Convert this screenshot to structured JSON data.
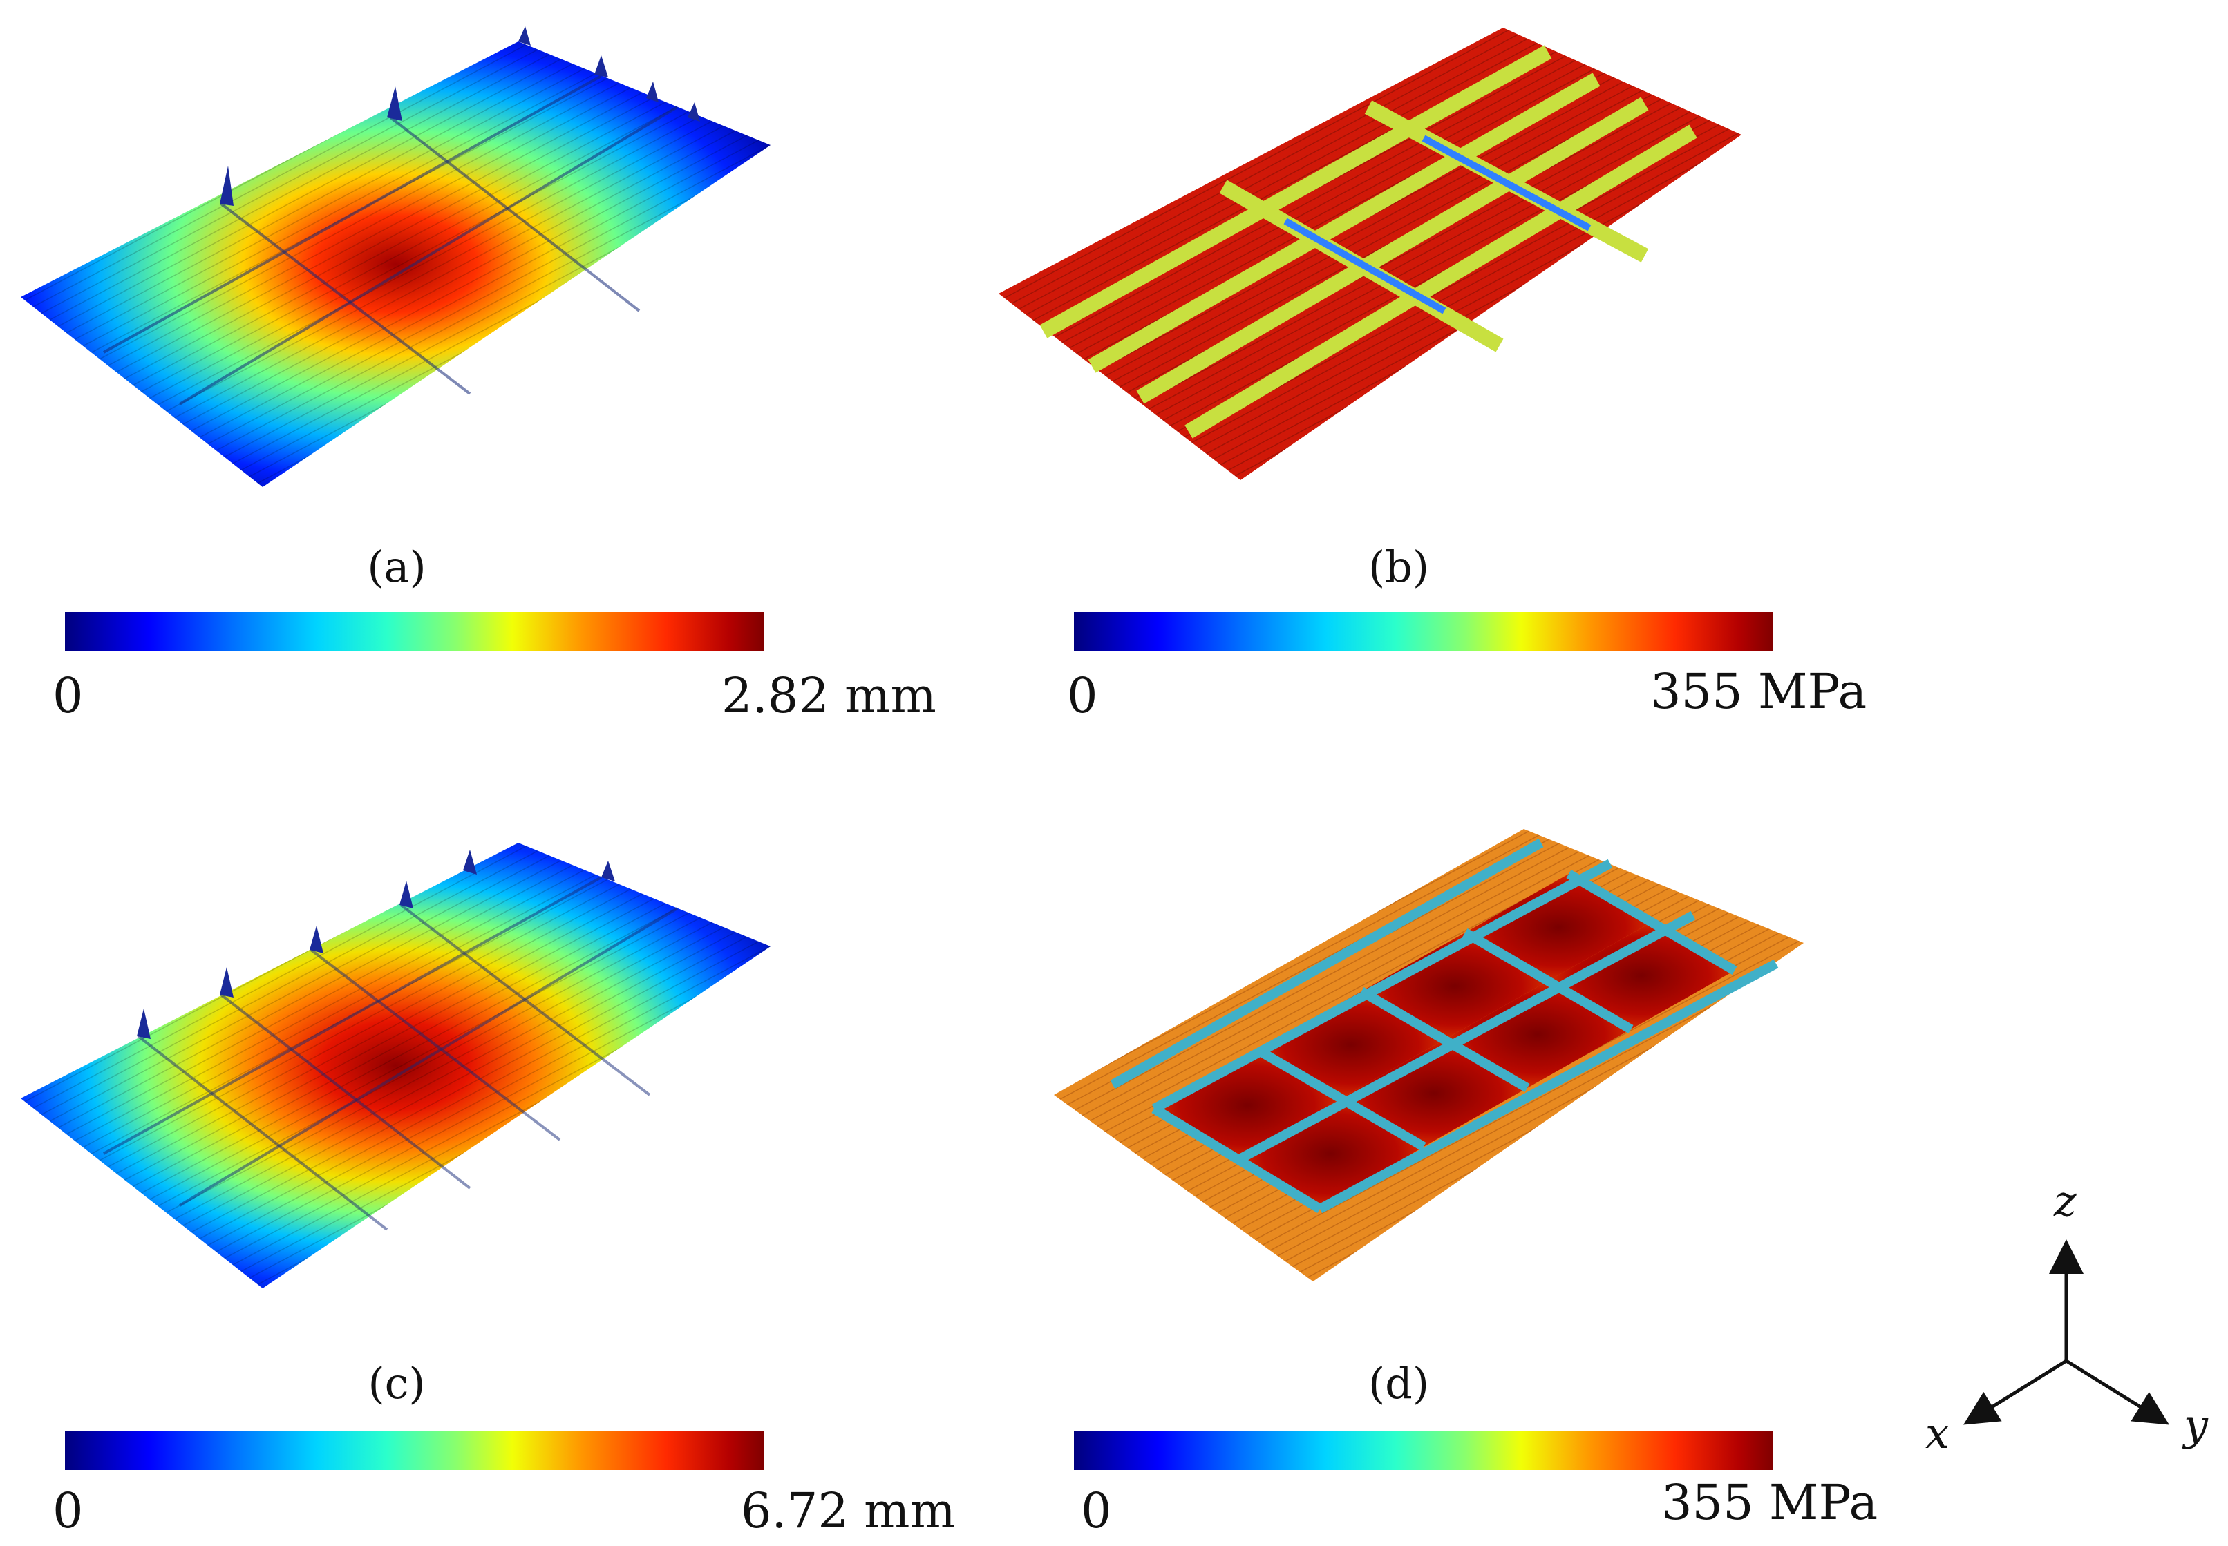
{
  "panels": [
    {
      "id": "a",
      "caption": "(a)",
      "scale_min": "0",
      "scale_max": "2.82 mm",
      "quantity": "displacement",
      "max_value": 2.82,
      "unit": "mm"
    },
    {
      "id": "b",
      "caption": "(b)",
      "scale_min": "0",
      "scale_max": "355 MPa",
      "quantity": "stress",
      "max_value": 355,
      "unit": "MPa"
    },
    {
      "id": "c",
      "caption": "(c)",
      "scale_min": "0",
      "scale_max": "6.72 mm",
      "quantity": "displacement",
      "max_value": 6.72,
      "unit": "mm"
    },
    {
      "id": "d",
      "caption": "(d)",
      "scale_min": "0",
      "scale_max": "355 MPa",
      "quantity": "stress",
      "max_value": 355,
      "unit": "MPa"
    }
  ],
  "axes": {
    "z": "z",
    "x": "x",
    "y": "y"
  },
  "colormap": [
    "#00007f",
    "#0000ff",
    "#00d4ff",
    "#8aff6c",
    "#f1ff06",
    "#ff9500",
    "#ff2a00",
    "#800000"
  ]
}
